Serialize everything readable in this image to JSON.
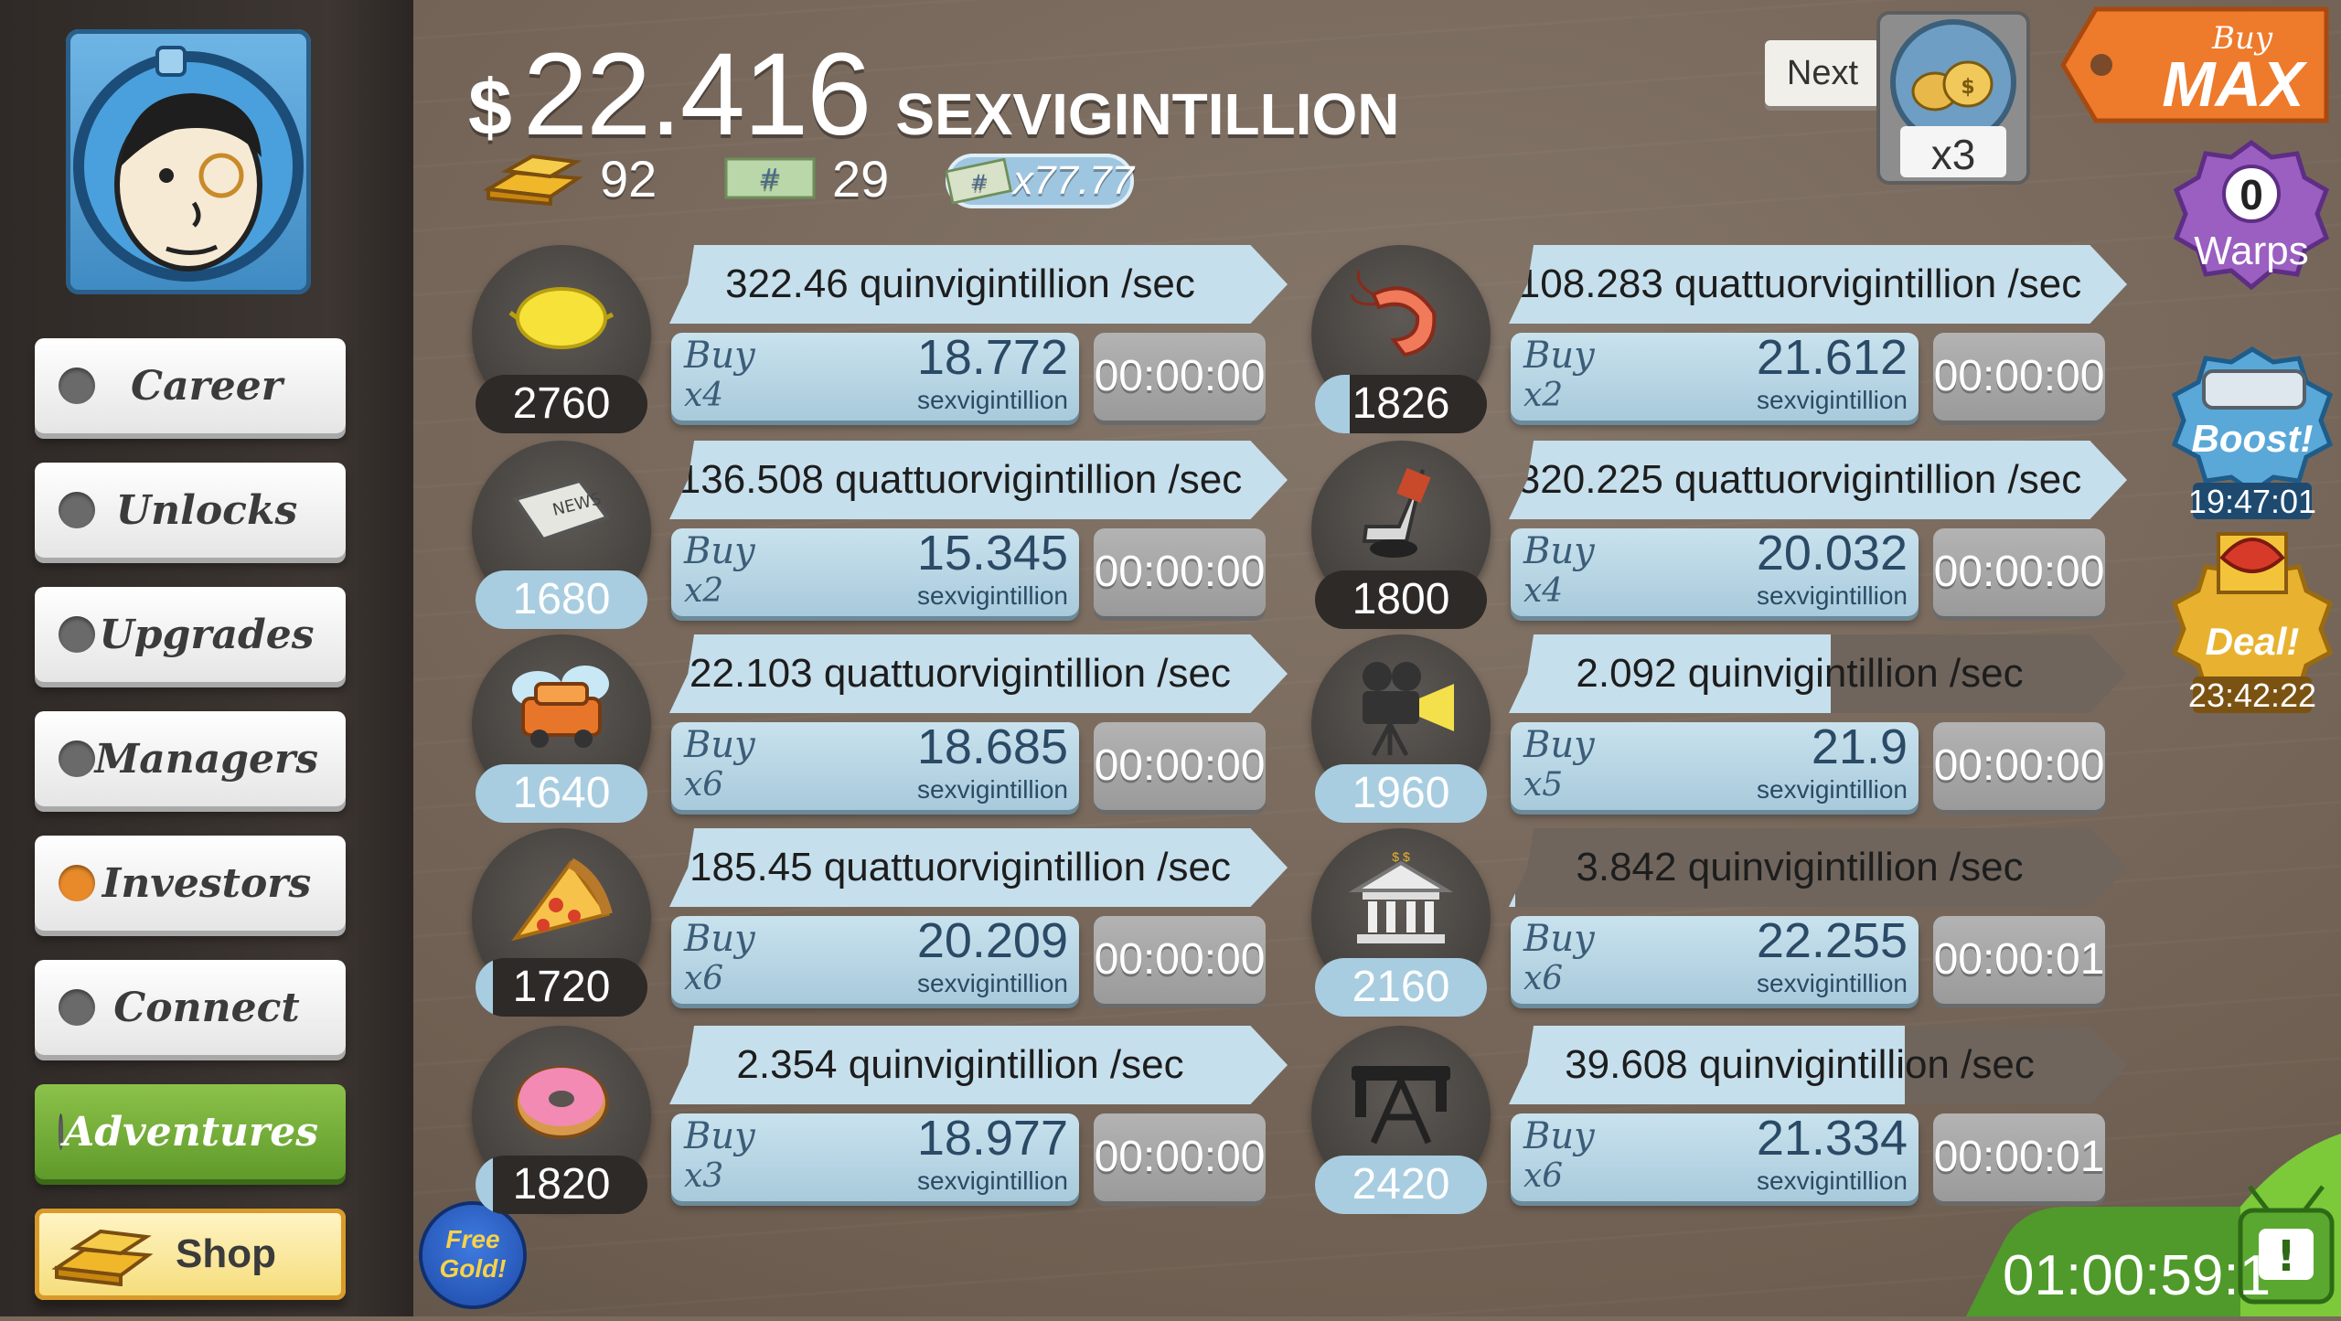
{
  "money": {
    "symbol": "$",
    "amount": "22.416",
    "unit": "SEXVIGINTILLION"
  },
  "stats": {
    "gold": "92",
    "megabucks": "29",
    "megabuck_multiplier": "x77.77"
  },
  "menu": [
    {
      "label": "Career",
      "dot": "#6a6a6a"
    },
    {
      "label": "Unlocks",
      "dot": "#6a6a6a"
    },
    {
      "label": "Upgrades",
      "dot": "#6a6a6a"
    },
    {
      "label": "Managers",
      "dot": "#6a6a6a"
    },
    {
      "label": "Investors",
      "dot": "#e98a2a"
    },
    {
      "label": "Connect",
      "dot": "#6a6a6a"
    },
    {
      "label": "Adventures",
      "dot": "#6a6a6a"
    },
    {
      "label": "Shop"
    }
  ],
  "top_right": {
    "next_label": "Next",
    "multiplier": "x3",
    "buy_label": "Buy",
    "max_label": "MAX"
  },
  "side_widgets": {
    "warps_count": "0",
    "warps_label": "Warps",
    "boost_label": "Boost!",
    "boost_timer": "19:47:01",
    "deal_label": "Deal!",
    "deal_timer": "23:42:22",
    "tv_timer": "01:00:59:1"
  },
  "free_gold": "Free Gold!",
  "businesses": [
    {
      "icon": "lemon-icon",
      "count": "2760",
      "count_progress": 0.0,
      "revenue": "322.46 quinvigintillion /sec",
      "rev_progress": 0.0,
      "buy": "Buy",
      "qty": "x4",
      "cost": "18.772",
      "cost_unit": "sexvigintillion",
      "timer": "00:00:00"
    },
    {
      "icon": "shrimp-icon",
      "count": "1826",
      "count_progress": 0.2,
      "revenue": "108.283 quattuorvigintillion /sec",
      "rev_progress": 0.0,
      "buy": "Buy",
      "qty": "x2",
      "cost": "21.612",
      "cost_unit": "sexvigintillion",
      "timer": "00:00:00"
    },
    {
      "icon": "newspaper-icon",
      "count": "1680",
      "count_progress": 1.0,
      "revenue": "136.508 quattuorvigintillion /sec",
      "rev_progress": 0.0,
      "buy": "Buy",
      "qty": "x2",
      "cost": "15.345",
      "cost_unit": "sexvigintillion",
      "timer": "00:00:00"
    },
    {
      "icon": "hockey-icon",
      "count": "1800",
      "count_progress": 0.0,
      "revenue": "320.225 quattuorvigintillion /sec",
      "rev_progress": 0.0,
      "buy": "Buy",
      "qty": "x4",
      "cost": "20.032",
      "cost_unit": "sexvigintillion",
      "timer": "00:00:00"
    },
    {
      "icon": "car-wash-icon",
      "count": "1640",
      "count_progress": 1.0,
      "revenue": "22.103 quattuorvigintillion /sec",
      "rev_progress": 0.0,
      "buy": "Buy",
      "qty": "x6",
      "cost": "18.685",
      "cost_unit": "sexvigintillion",
      "timer": "00:00:00"
    },
    {
      "icon": "movie-camera-icon",
      "count": "1960",
      "count_progress": 1.0,
      "revenue": "2.092 quinvigintillion /sec",
      "rev_progress": 0.52,
      "buy": "Buy",
      "qty": "x5",
      "cost": "21.9",
      "cost_unit": "sexvigintillion",
      "timer": "00:00:00"
    },
    {
      "icon": "pizza-icon",
      "count": "1720",
      "count_progress": 0.1,
      "revenue": "185.45 quattuorvigintillion /sec",
      "rev_progress": 0.0,
      "buy": "Buy",
      "qty": "x6",
      "cost": "20.209",
      "cost_unit": "sexvigintillion",
      "timer": "00:00:00"
    },
    {
      "icon": "bank-icon",
      "count": "2160",
      "count_progress": 1.0,
      "revenue": "3.842 quinvigintillion /sec",
      "rev_progress": 0.01,
      "buy": "Buy",
      "qty": "x6",
      "cost": "22.255",
      "cost_unit": "sexvigintillion",
      "timer": "00:00:01"
    },
    {
      "icon": "donut-icon",
      "count": "1820",
      "count_progress": 0.1,
      "revenue": "2.354 quinvigintillion /sec",
      "rev_progress": 0.0,
      "buy": "Buy",
      "qty": "x3",
      "cost": "18.977",
      "cost_unit": "sexvigintillion",
      "timer": "00:00:00"
    },
    {
      "icon": "oil-rig-icon",
      "count": "2420",
      "count_progress": 1.0,
      "revenue": "39.608 quinvigintillion /sec",
      "rev_progress": 0.64,
      "buy": "Buy",
      "qty": "x6",
      "cost": "21.334",
      "cost_unit": "sexvigintillion",
      "timer": "00:00:01"
    }
  ]
}
